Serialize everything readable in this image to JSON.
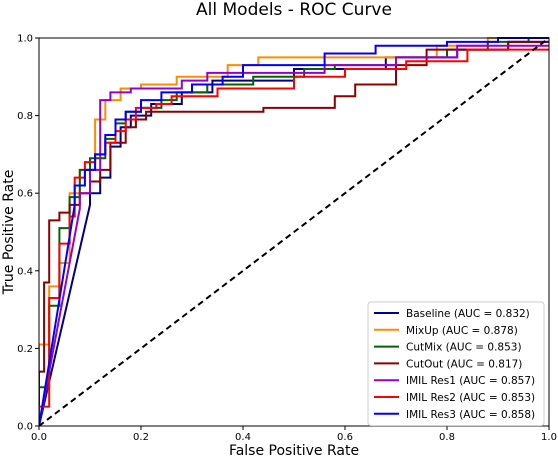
{
  "chart_data": {
    "type": "line",
    "title": "All Models - ROC Curve",
    "xlabel": "False Positive Rate",
    "ylabel": "True Positive Rate",
    "xlim": [
      0.0,
      1.0
    ],
    "ylim": [
      0.0,
      1.0
    ],
    "xticks": [
      "0.0",
      "0.2",
      "0.4",
      "0.6",
      "0.8",
      "1.0"
    ],
    "yticks": [
      "0.0",
      "0.2",
      "0.4",
      "0.6",
      "0.8",
      "1.0"
    ],
    "grid": false,
    "legend_position": "lower-right",
    "chance_line": {
      "style": "dashed",
      "color": "#000000",
      "points": [
        [
          0,
          0
        ],
        [
          1,
          1
        ]
      ]
    },
    "series": [
      {
        "name": "Baseline (AUC = 0.832)",
        "color": "#000080",
        "points": [
          [
            0,
            0
          ],
          [
            0.1,
            0.57
          ],
          [
            0.1,
            0.6
          ],
          [
            0.12,
            0.6
          ],
          [
            0.12,
            0.64
          ],
          [
            0.14,
            0.64
          ],
          [
            0.14,
            0.72
          ],
          [
            0.16,
            0.72
          ],
          [
            0.16,
            0.77
          ],
          [
            0.18,
            0.77
          ],
          [
            0.18,
            0.8
          ],
          [
            0.22,
            0.8
          ],
          [
            0.22,
            0.83
          ],
          [
            0.28,
            0.83
          ],
          [
            0.28,
            0.86
          ],
          [
            0.34,
            0.86
          ],
          [
            0.34,
            0.89
          ],
          [
            0.5,
            0.89
          ],
          [
            0.5,
            0.92
          ],
          [
            0.68,
            0.92
          ],
          [
            0.68,
            0.95
          ],
          [
            0.82,
            0.95
          ],
          [
            0.82,
            0.97
          ],
          [
            0.92,
            0.97
          ],
          [
            0.92,
            0.99
          ],
          [
            1,
            0.99
          ]
        ]
      },
      {
        "name": "MixUp (AUC = 0.878)",
        "color": "#ff8c00",
        "points": [
          [
            0,
            0
          ],
          [
            0,
            0.21
          ],
          [
            0.02,
            0.21
          ],
          [
            0.02,
            0.36
          ],
          [
            0.04,
            0.36
          ],
          [
            0.04,
            0.42
          ],
          [
            0.06,
            0.42
          ],
          [
            0.06,
            0.6
          ],
          [
            0.08,
            0.6
          ],
          [
            0.08,
            0.66
          ],
          [
            0.11,
            0.66
          ],
          [
            0.11,
            0.79
          ],
          [
            0.13,
            0.79
          ],
          [
            0.13,
            0.84
          ],
          [
            0.16,
            0.84
          ],
          [
            0.16,
            0.87
          ],
          [
            0.2,
            0.87
          ],
          [
            0.2,
            0.88
          ],
          [
            0.27,
            0.88
          ],
          [
            0.27,
            0.9
          ],
          [
            0.37,
            0.9
          ],
          [
            0.37,
            0.93
          ],
          [
            0.43,
            0.93
          ],
          [
            0.43,
            0.95
          ],
          [
            0.78,
            0.95
          ],
          [
            0.78,
            0.98
          ],
          [
            0.88,
            0.98
          ],
          [
            0.88,
            1.0
          ],
          [
            1,
            1.0
          ]
        ]
      },
      {
        "name": "CutMix (AUC = 0.853)",
        "color": "#006400",
        "points": [
          [
            0,
            0
          ],
          [
            0,
            0.1
          ],
          [
            0.02,
            0.1
          ],
          [
            0.02,
            0.31
          ],
          [
            0.04,
            0.31
          ],
          [
            0.04,
            0.51
          ],
          [
            0.06,
            0.51
          ],
          [
            0.06,
            0.59
          ],
          [
            0.08,
            0.59
          ],
          [
            0.08,
            0.66
          ],
          [
            0.1,
            0.66
          ],
          [
            0.1,
            0.69
          ],
          [
            0.13,
            0.69
          ],
          [
            0.13,
            0.74
          ],
          [
            0.15,
            0.74
          ],
          [
            0.15,
            0.78
          ],
          [
            0.17,
            0.78
          ],
          [
            0.17,
            0.81
          ],
          [
            0.2,
            0.81
          ],
          [
            0.2,
            0.82
          ],
          [
            0.24,
            0.82
          ],
          [
            0.24,
            0.84
          ],
          [
            0.27,
            0.84
          ],
          [
            0.27,
            0.86
          ],
          [
            0.33,
            0.86
          ],
          [
            0.33,
            0.88
          ],
          [
            0.42,
            0.88
          ],
          [
            0.42,
            0.9
          ],
          [
            0.52,
            0.9
          ],
          [
            0.52,
            0.92
          ],
          [
            0.58,
            0.92
          ],
          [
            0.58,
            0.93
          ],
          [
            0.7,
            0.93
          ],
          [
            0.7,
            0.95
          ],
          [
            0.8,
            0.95
          ],
          [
            0.8,
            0.97
          ],
          [
            0.88,
            0.97
          ],
          [
            0.88,
            0.99
          ],
          [
            0.96,
            0.99
          ],
          [
            0.96,
            1.0
          ],
          [
            1,
            1.0
          ]
        ]
      },
      {
        "name": "CutOut (AUC = 0.817)",
        "color": "#8b0000",
        "points": [
          [
            0,
            0
          ],
          [
            0,
            0.14
          ],
          [
            0.01,
            0.14
          ],
          [
            0.01,
            0.37
          ],
          [
            0.02,
            0.37
          ],
          [
            0.02,
            0.53
          ],
          [
            0.04,
            0.53
          ],
          [
            0.04,
            0.55
          ],
          [
            0.06,
            0.55
          ],
          [
            0.06,
            0.57
          ],
          [
            0.08,
            0.57
          ],
          [
            0.08,
            0.6
          ],
          [
            0.1,
            0.6
          ],
          [
            0.1,
            0.63
          ],
          [
            0.12,
            0.63
          ],
          [
            0.12,
            0.66
          ],
          [
            0.14,
            0.66
          ],
          [
            0.14,
            0.73
          ],
          [
            0.17,
            0.73
          ],
          [
            0.17,
            0.77
          ],
          [
            0.19,
            0.77
          ],
          [
            0.19,
            0.79
          ],
          [
            0.21,
            0.79
          ],
          [
            0.21,
            0.81
          ],
          [
            0.44,
            0.81
          ],
          [
            0.44,
            0.82
          ],
          [
            0.58,
            0.82
          ],
          [
            0.58,
            0.85
          ],
          [
            0.62,
            0.85
          ],
          [
            0.62,
            0.88
          ],
          [
            0.7,
            0.88
          ],
          [
            0.7,
            0.93
          ],
          [
            0.76,
            0.93
          ],
          [
            0.76,
            0.97
          ],
          [
            0.92,
            0.97
          ],
          [
            0.92,
            0.99
          ],
          [
            1,
            0.99
          ]
        ]
      },
      {
        "name": "IMIL Res1 (AUC = 0.857)",
        "color": "#9400d3",
        "points": [
          [
            0,
            0
          ],
          [
            0.08,
            0.56
          ],
          [
            0.08,
            0.6
          ],
          [
            0.1,
            0.6
          ],
          [
            0.1,
            0.66
          ],
          [
            0.12,
            0.66
          ],
          [
            0.12,
            0.84
          ],
          [
            0.14,
            0.84
          ],
          [
            0.14,
            0.86
          ],
          [
            0.18,
            0.86
          ],
          [
            0.18,
            0.87
          ],
          [
            0.28,
            0.87
          ],
          [
            0.28,
            0.89
          ],
          [
            0.33,
            0.89
          ],
          [
            0.33,
            0.91
          ],
          [
            0.56,
            0.91
          ],
          [
            0.56,
            0.93
          ],
          [
            0.7,
            0.93
          ],
          [
            0.7,
            0.95
          ],
          [
            0.82,
            0.95
          ],
          [
            0.82,
            0.98
          ],
          [
            1,
            0.98
          ]
        ]
      },
      {
        "name": "IMIL Res2 (AUC = 0.853)",
        "color": "#ff0000",
        "points": [
          [
            0,
            0
          ],
          [
            0,
            0.05
          ],
          [
            0.02,
            0.05
          ],
          [
            0.02,
            0.33
          ],
          [
            0.04,
            0.33
          ],
          [
            0.04,
            0.47
          ],
          [
            0.06,
            0.47
          ],
          [
            0.06,
            0.54
          ],
          [
            0.07,
            0.54
          ],
          [
            0.07,
            0.64
          ],
          [
            0.09,
            0.64
          ],
          [
            0.09,
            0.68
          ],
          [
            0.11,
            0.68
          ],
          [
            0.11,
            0.7
          ],
          [
            0.13,
            0.7
          ],
          [
            0.13,
            0.73
          ],
          [
            0.15,
            0.73
          ],
          [
            0.15,
            0.76
          ],
          [
            0.17,
            0.76
          ],
          [
            0.17,
            0.79
          ],
          [
            0.19,
            0.79
          ],
          [
            0.19,
            0.82
          ],
          [
            0.23,
            0.82
          ],
          [
            0.23,
            0.83
          ],
          [
            0.26,
            0.83
          ],
          [
            0.26,
            0.85
          ],
          [
            0.35,
            0.85
          ],
          [
            0.35,
            0.87
          ],
          [
            0.5,
            0.87
          ],
          [
            0.5,
            0.9
          ],
          [
            0.6,
            0.9
          ],
          [
            0.6,
            0.92
          ],
          [
            0.72,
            0.92
          ],
          [
            0.72,
            0.94
          ],
          [
            0.84,
            0.94
          ],
          [
            0.84,
            0.97
          ],
          [
            1,
            0.97
          ]
        ]
      },
      {
        "name": "IMIL Res3 (AUC = 0.858)",
        "color": "#0000ff",
        "points": [
          [
            0,
            0
          ],
          [
            0.07,
            0.57
          ],
          [
            0.07,
            0.62
          ],
          [
            0.09,
            0.62
          ],
          [
            0.09,
            0.66
          ],
          [
            0.11,
            0.66
          ],
          [
            0.11,
            0.7
          ],
          [
            0.13,
            0.7
          ],
          [
            0.13,
            0.75
          ],
          [
            0.15,
            0.75
          ],
          [
            0.15,
            0.79
          ],
          [
            0.17,
            0.79
          ],
          [
            0.17,
            0.81
          ],
          [
            0.2,
            0.81
          ],
          [
            0.2,
            0.84
          ],
          [
            0.24,
            0.84
          ],
          [
            0.24,
            0.86
          ],
          [
            0.3,
            0.86
          ],
          [
            0.3,
            0.88
          ],
          [
            0.36,
            0.88
          ],
          [
            0.36,
            0.9
          ],
          [
            0.4,
            0.9
          ],
          [
            0.4,
            0.93
          ],
          [
            0.56,
            0.93
          ],
          [
            0.56,
            0.96
          ],
          [
            0.66,
            0.96
          ],
          [
            0.66,
            0.98
          ],
          [
            0.8,
            0.98
          ],
          [
            0.8,
            0.99
          ],
          [
            0.9,
            0.99
          ],
          [
            0.9,
            1.0
          ],
          [
            1,
            1.0
          ]
        ]
      }
    ]
  }
}
